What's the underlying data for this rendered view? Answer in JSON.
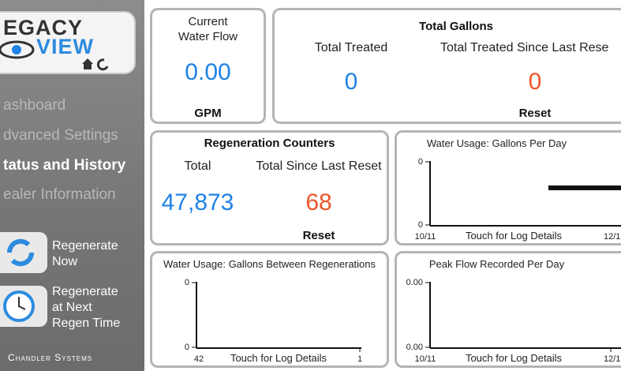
{
  "sidebar": {
    "logo": {
      "line1": "EGACY",
      "line2": "VIEW"
    },
    "nav": [
      "ashboard",
      "dvanced Settings",
      "tatus and History",
      "ealer Information"
    ],
    "buttons": [
      {
        "lines": [
          "Regenerate",
          "Now"
        ]
      },
      {
        "lines": [
          "Regenerate",
          "at Next",
          "Regen Time"
        ]
      }
    ],
    "footer": "Chandler Systems"
  },
  "flow": {
    "title": [
      "Current",
      "Water Flow"
    ],
    "value": "0.00",
    "unit": "GPM"
  },
  "gallons": {
    "title": "Total Gallons",
    "columns": [
      {
        "label": "Total Treated",
        "value": "0"
      },
      {
        "label": "Total Treated Since Last Rese",
        "value": "0"
      }
    ],
    "reset": "Reset"
  },
  "regen": {
    "title": "Regeneration Counters",
    "columns": [
      {
        "label": "Total",
        "value": "47,873"
      },
      {
        "label": "Total Since Last Reset",
        "value": "68"
      }
    ],
    "reset": "Reset"
  },
  "charts": [
    {
      "title": "Water Usage: Gallons Per Day",
      "y_top": "0",
      "y_bottom": "0",
      "x_left": "10/11",
      "x_right": "12/1",
      "note": "Touch for Log Details"
    },
    {
      "title": "Water Usage: Gallons Between Regenerations",
      "y_top": "0",
      "y_bottom": "0",
      "x_left": "42",
      "x_right": "1",
      "note": "Touch for Log Details"
    },
    {
      "title": "Peak Flow Recorded Per Day",
      "y_top": "0.00",
      "y_bottom": "0.00",
      "x_left": "10/11",
      "x_right": "12/1",
      "note": "Touch for Log Details"
    }
  ]
}
